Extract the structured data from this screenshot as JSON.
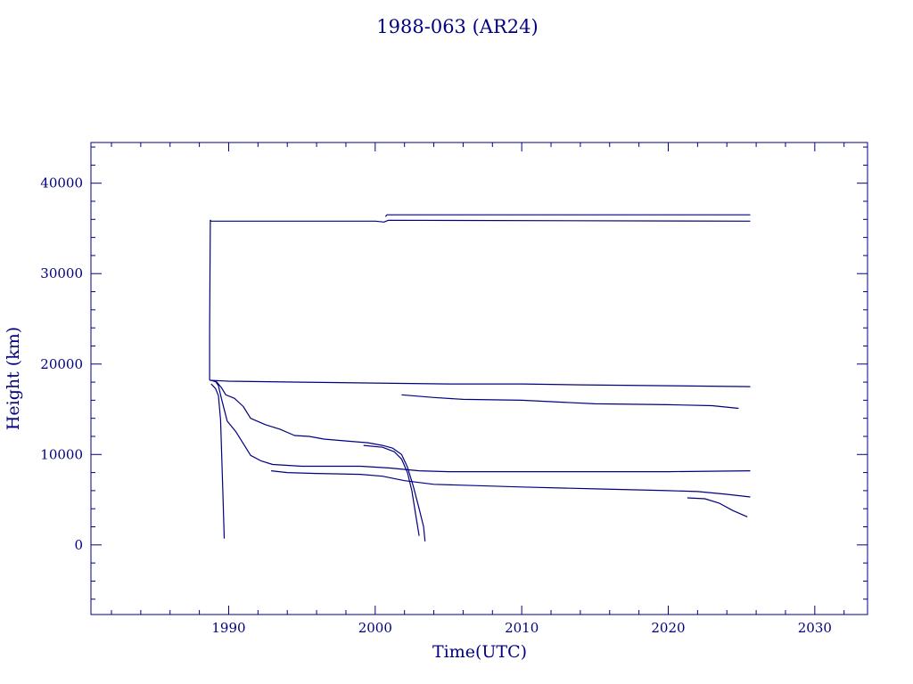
{
  "chart_data": {
    "type": "line",
    "title": "1988-063 (AR24)",
    "xlabel": "Time(UTC)",
    "ylabel": "Height (km)",
    "xlim": [
      1980.6,
      2033.6
    ],
    "ylim": [
      -7700,
      44500
    ],
    "x_ticks": [
      1990,
      2000,
      2010,
      2020,
      2030
    ],
    "x_tick_labels": [
      "1990",
      "2000",
      "2010",
      "2020",
      "2030"
    ],
    "y_ticks": [
      0,
      10000,
      20000,
      30000,
      40000
    ],
    "y_tick_labels": [
      "0",
      "10000",
      "20000",
      "30000",
      "40000"
    ],
    "x_minor_step": 2,
    "y_minor_step": 2000,
    "grid": false,
    "legend": "none",
    "color": "#000080",
    "series": [
      {
        "points": [
          [
            1988.7,
            18200
          ],
          [
            1988.7,
            23700
          ],
          [
            1988.75,
            35900
          ],
          [
            1988.8,
            35800
          ],
          [
            1995,
            35800
          ],
          [
            2000,
            35800
          ],
          [
            2000.6,
            35700
          ],
          [
            2000.9,
            35900
          ],
          [
            2025.6,
            35800
          ]
        ]
      },
      {
        "points": [
          [
            2000.7,
            36300
          ],
          [
            2000.8,
            36500
          ],
          [
            2025.6,
            36500
          ]
        ]
      },
      {
        "points": [
          [
            1988.7,
            18200
          ],
          [
            1990,
            18100
          ],
          [
            1995,
            18000
          ],
          [
            2000,
            17900
          ],
          [
            2005,
            17800
          ],
          [
            2010,
            17800
          ],
          [
            2014,
            17700
          ],
          [
            2020,
            17600
          ],
          [
            2025.6,
            17500
          ]
        ]
      },
      {
        "points": [
          [
            2001.8,
            16600
          ],
          [
            2004,
            16300
          ],
          [
            2006,
            16100
          ],
          [
            2010,
            16000
          ],
          [
            2015,
            15600
          ],
          [
            2020,
            15500
          ],
          [
            2023,
            15400
          ],
          [
            2024.8,
            15100
          ]
        ]
      },
      {
        "points": [
          [
            1988.8,
            17800
          ],
          [
            1989.1,
            17300
          ],
          [
            1989.3,
            16500
          ],
          [
            1989.45,
            13800
          ],
          [
            1989.6,
            6000
          ],
          [
            1989.7,
            700
          ]
        ]
      },
      {
        "points": [
          [
            1988.8,
            18200
          ],
          [
            1989.2,
            18000
          ],
          [
            1989.5,
            17400
          ],
          [
            1989.8,
            16600
          ],
          [
            1990.4,
            16200
          ],
          [
            1991,
            15300
          ],
          [
            1991.5,
            14000
          ],
          [
            1992.5,
            13300
          ],
          [
            1993.5,
            12800
          ],
          [
            1994.5,
            12100
          ],
          [
            1995.5,
            12000
          ],
          [
            1996.5,
            11700
          ],
          [
            1998,
            11500
          ],
          [
            1999.5,
            11300
          ],
          [
            2000.5,
            11000
          ],
          [
            2001.2,
            10700
          ],
          [
            2001.8,
            10000
          ],
          [
            2002.2,
            8600
          ],
          [
            2002.6,
            6500
          ],
          [
            2003,
            4000
          ],
          [
            2003.3,
            2000
          ],
          [
            2003.4,
            400
          ]
        ]
      },
      {
        "points": [
          [
            1989.1,
            18100
          ],
          [
            1989.3,
            17600
          ],
          [
            1989.5,
            16200
          ],
          [
            1989.9,
            13700
          ],
          [
            1990.5,
            12500
          ],
          [
            1991,
            11200
          ],
          [
            1991.5,
            9900
          ],
          [
            1992.2,
            9300
          ],
          [
            1993,
            8900
          ],
          [
            1995,
            8700
          ],
          [
            1999,
            8700
          ],
          [
            2001,
            8500
          ],
          [
            2003,
            8200
          ],
          [
            2005,
            8100
          ],
          [
            2010,
            8100
          ],
          [
            2015,
            8100
          ],
          [
            2020,
            8100
          ],
          [
            2025.6,
            8200
          ]
        ]
      },
      {
        "points": [
          [
            1999.2,
            11000
          ],
          [
            2000.5,
            10800
          ],
          [
            2001.3,
            10300
          ],
          [
            2001.8,
            9500
          ],
          [
            2002.2,
            8000
          ],
          [
            2002.5,
            6000
          ],
          [
            2002.8,
            3000
          ],
          [
            2003,
            1000
          ]
        ]
      },
      {
        "points": [
          [
            1992.9,
            8200
          ],
          [
            1994,
            8000
          ],
          [
            1996,
            7900
          ],
          [
            1999,
            7800
          ],
          [
            2000.5,
            7600
          ],
          [
            2002,
            7100
          ],
          [
            2004,
            6700
          ],
          [
            2006,
            6600
          ],
          [
            2010,
            6400
          ],
          [
            2015,
            6200
          ],
          [
            2020,
            6000
          ],
          [
            2022,
            5900
          ],
          [
            2024,
            5600
          ],
          [
            2025.6,
            5300
          ]
        ]
      },
      {
        "points": [
          [
            2021.3,
            5200
          ],
          [
            2022.5,
            5100
          ],
          [
            2023.5,
            4600
          ],
          [
            2024.4,
            3800
          ],
          [
            2025.4,
            3100
          ]
        ]
      }
    ]
  }
}
